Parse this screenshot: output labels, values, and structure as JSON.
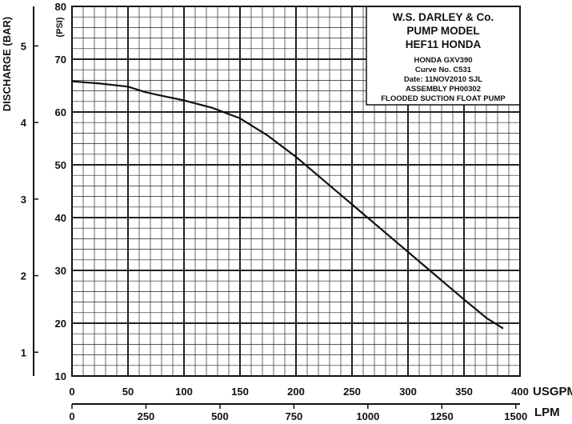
{
  "chart_data": {
    "type": "line",
    "title_lines": [
      "W.S. DARLEY & Co.",
      "PUMP MODEL",
      "HEF11 HONDA"
    ],
    "info_lines": [
      "HONDA GXV390",
      "Curve No. C531",
      "Date: 11NOV2010 SJL",
      "ASSEMBLY PH00302",
      "FLOODED SUCTION FLOAT PUMP"
    ],
    "xlabel": "USGPM",
    "x2label": "LPM",
    "ylabel": "(PSI)",
    "y2label": "DISCHARGE (BAR)",
    "xlim": [
      0,
      400
    ],
    "ylim": [
      10,
      80
    ],
    "x_ticks": [
      "0",
      "50",
      "100",
      "150",
      "200",
      "250",
      "300",
      "350",
      "400"
    ],
    "x2_ticks": [
      "0",
      "250",
      "500",
      "750",
      "1000",
      "1250",
      "1500"
    ],
    "y_ticks": [
      "10",
      "20",
      "30",
      "40",
      "50",
      "60",
      "70",
      "80"
    ],
    "y2_ticks": [
      "1",
      "2",
      "3",
      "4",
      "5"
    ],
    "grid": true,
    "series": [
      {
        "x": [
          0,
          25,
          50,
          65,
          75,
          100,
          125,
          150,
          175,
          200,
          225,
          250,
          275,
          300,
          325,
          350,
          370,
          385
        ],
        "y": [
          65.8,
          65.4,
          64.8,
          63.8,
          63.3,
          62.2,
          60.8,
          58.8,
          55.5,
          51.5,
          47,
          42.5,
          38,
          33.5,
          29,
          24.5,
          21,
          19
        ]
      }
    ]
  }
}
